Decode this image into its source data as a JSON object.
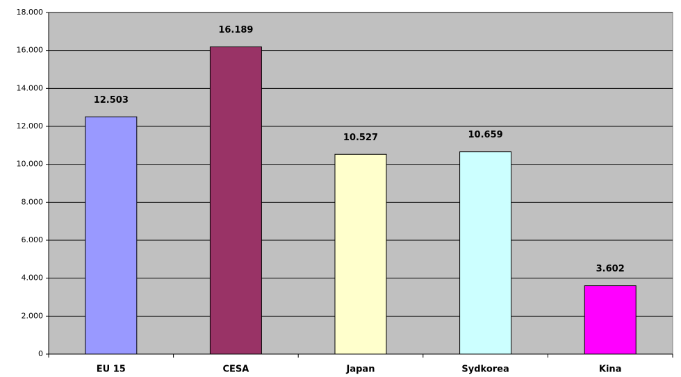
{
  "chart_data": {
    "type": "bar",
    "categories": [
      "EU 15",
      "CESA",
      "Japan",
      "Sydkorea",
      "Kina"
    ],
    "values": [
      12503,
      16189,
      10527,
      10659,
      3602
    ],
    "value_labels": [
      "12.503",
      "16.189",
      "10.527",
      "10.659",
      "3.602"
    ],
    "colors": [
      "#9999ff",
      "#993366",
      "#ffffcc",
      "#ccffff",
      "#ff00ff"
    ],
    "ylim": [
      0,
      18000
    ],
    "yticks": [
      0,
      {
        "value": 2000,
        "label": "2.000"
      },
      {
        "value": 4000,
        "label": "4.000"
      },
      {
        "value": 6000,
        "label": "6.000"
      },
      {
        "value": 8000,
        "label": "8.000"
      },
      {
        "value": 10000,
        "label": "10.000"
      },
      {
        "value": 12000,
        "label": "12.000"
      },
      {
        "value": 14000,
        "label": "14.000"
      },
      {
        "value": 16000,
        "label": "16.000"
      },
      {
        "value": 18000,
        "label": "18.000"
      }
    ],
    "grid": true
  }
}
